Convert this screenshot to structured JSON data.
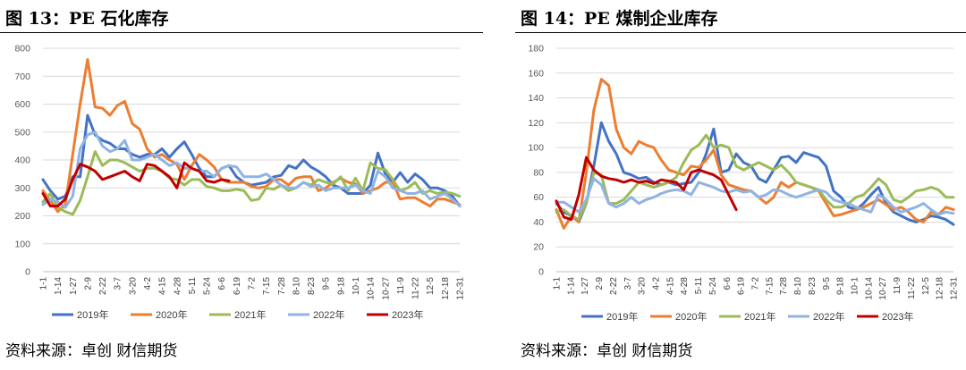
{
  "chart_data": [
    {
      "type": "line",
      "title": "图 13：PE 石化库存",
      "source": "资料来源：卓创  财信期货",
      "ylim": [
        0,
        800
      ],
      "yticks": [
        0,
        100,
        200,
        300,
        400,
        500,
        600,
        700,
        800
      ],
      "xticks": [
        "1-1",
        "1-14",
        "1-27",
        "2-9",
        "2-22",
        "3-7",
        "3-20",
        "4-2",
        "4-15",
        "4-28",
        "5-11",
        "5-24",
        "6-6",
        "6-19",
        "7-2",
        "7-15",
        "7-28",
        "8-10",
        "8-23",
        "9-5",
        "9-18",
        "10-1",
        "10-14",
        "10-27",
        "11-9",
        "11-22",
        "12-5",
        "12-18",
        "12-31"
      ],
      "grid": true,
      "legend": "bottom",
      "series": [
        {
          "name": "2019年",
          "color": "#4472c4",
          "values": [
            330,
            290,
            260,
            270,
            340,
            340,
            560,
            490,
            470,
            460,
            440,
            440,
            420,
            410,
            420,
            420,
            440,
            410,
            440,
            465,
            420,
            370,
            340,
            340,
            370,
            380,
            340,
            320,
            310,
            315,
            320,
            340,
            345,
            380,
            370,
            400,
            375,
            360,
            340,
            310,
            300,
            280,
            280,
            280,
            310,
            425,
            350,
            320,
            355,
            320,
            350,
            330,
            300,
            300,
            290,
            270,
            235
          ]
        },
        {
          "name": "2020年",
          "color": "#ed7d31",
          "values": [
            290,
            255,
            215,
            240,
            420,
            600,
            760,
            590,
            585,
            560,
            595,
            610,
            530,
            510,
            440,
            410,
            420,
            400,
            385,
            330,
            380,
            420,
            400,
            375,
            330,
            320,
            320,
            320,
            305,
            300,
            305,
            330,
            330,
            310,
            335,
            340,
            340,
            290,
            300,
            320,
            335,
            320,
            315,
            280,
            290,
            300,
            320,
            320,
            260,
            265,
            265,
            250,
            235,
            260,
            260,
            250,
            240
          ]
        },
        {
          "name": "2021年",
          "color": "#9bbb59",
          "values": [
            250,
            280,
            230,
            215,
            205,
            255,
            340,
            430,
            380,
            400,
            400,
            390,
            375,
            360,
            370,
            370,
            360,
            335,
            330,
            310,
            330,
            330,
            305,
            300,
            290,
            290,
            295,
            290,
            255,
            260,
            300,
            295,
            310,
            290,
            300,
            320,
            310,
            330,
            320,
            315,
            340,
            290,
            335,
            290,
            390,
            370,
            365,
            330,
            290,
            300,
            320,
            280,
            290,
            280,
            285,
            280,
            270
          ]
        },
        {
          "name": "2022年",
          "color": "#8fb4e3",
          "values": [
            240,
            260,
            250,
            230,
            270,
            440,
            490,
            500,
            450,
            430,
            440,
            470,
            400,
            400,
            410,
            420,
            400,
            380,
            390,
            370,
            370,
            360,
            360,
            340,
            370,
            380,
            375,
            340,
            340,
            340,
            350,
            330,
            310,
            300,
            300,
            320,
            305,
            310,
            290,
            300,
            300,
            300,
            310,
            290,
            280,
            360,
            340,
            300,
            290,
            280,
            280,
            290,
            260,
            270,
            280,
            260,
            235
          ]
        },
        {
          "name": "2023年",
          "color": "#c00000",
          "values": [
            280,
            235,
            235,
            260,
            330,
            385,
            375,
            360,
            330,
            340,
            350,
            360,
            340,
            325,
            385,
            380,
            360,
            340,
            300,
            390,
            370,
            360,
            325,
            320,
            330,
            325
          ]
        }
      ]
    },
    {
      "type": "line",
      "title": "图 14：PE 煤制企业库存",
      "source": "资料来源：卓创  财信期货",
      "ylim": [
        0,
        180
      ],
      "yticks": [
        0,
        20,
        40,
        60,
        80,
        100,
        120,
        140,
        160,
        180
      ],
      "xticks": [
        "1-1",
        "1-14",
        "1-27",
        "2-9",
        "2-22",
        "3-7",
        "3-20",
        "4-2",
        "4-15",
        "4-28",
        "5-11",
        "5-24",
        "6-6",
        "6-19",
        "7-2",
        "7-15",
        "7-28",
        "8-10",
        "8-23",
        "9-5",
        "9-18",
        "10-1",
        "10-14",
        "10-27",
        "11-9",
        "11-22",
        "12-5",
        "12-18",
        "12-31"
      ],
      "grid": true,
      "legend": "bottom",
      "series": [
        {
          "name": "2019年",
          "color": "#4472c4",
          "values": [
            55,
            48,
            45,
            40,
            55,
            85,
            120,
            105,
            95,
            80,
            78,
            75,
            76,
            72,
            70,
            72,
            70,
            71,
            72,
            80,
            95,
            115,
            80,
            82,
            95,
            88,
            85,
            75,
            72,
            82,
            92,
            93,
            88,
            96,
            94,
            92,
            85,
            65,
            60,
            52,
            50,
            55,
            62,
            68,
            55,
            48,
            45,
            42,
            40,
            42,
            45,
            44,
            42,
            38
          ]
        },
        {
          "name": "2020年",
          "color": "#ed7d31",
          "values": [
            50,
            35,
            45,
            40,
            80,
            130,
            155,
            150,
            115,
            100,
            95,
            105,
            102,
            100,
            90,
            82,
            80,
            78,
            85,
            84,
            90,
            98,
            78,
            70,
            68,
            66,
            65,
            60,
            55,
            60,
            72,
            68,
            72,
            70,
            68,
            65,
            55,
            45,
            46,
            48,
            50,
            52,
            55,
            58,
            54,
            50,
            52,
            48,
            42,
            40,
            48,
            46,
            52,
            50
          ]
        },
        {
          "name": "2021年",
          "color": "#9bbb59",
          "values": [
            48,
            50,
            45,
            42,
            55,
            80,
            78,
            55,
            55,
            58,
            65,
            72,
            70,
            68,
            70,
            72,
            76,
            88,
            98,
            102,
            110,
            100,
            102,
            100,
            85,
            82,
            85,
            88,
            85,
            82,
            86,
            80,
            72,
            70,
            68,
            66,
            58,
            52,
            52,
            55,
            60,
            62,
            68,
            75,
            70,
            58,
            56,
            60,
            65,
            66,
            68,
            66,
            60,
            60
          ]
        },
        {
          "name": "2022年",
          "color": "#8fb4e3",
          "values": [
            56,
            56,
            52,
            48,
            58,
            75,
            70,
            55,
            52,
            55,
            60,
            55,
            58,
            60,
            63,
            65,
            66,
            65,
            62,
            72,
            70,
            68,
            65,
            64,
            66,
            64,
            65,
            60,
            62,
            66,
            65,
            62,
            60,
            62,
            64,
            66,
            64,
            58,
            56,
            55,
            52,
            50,
            48,
            62,
            58,
            52,
            48,
            50,
            52,
            55,
            50,
            46,
            48,
            47
          ]
        },
        {
          "name": "2023年",
          "color": "#c00000",
          "values": [
            57,
            44,
            42,
            62,
            92,
            82,
            77,
            75,
            74,
            72,
            74,
            72,
            73,
            71,
            74,
            73,
            72,
            66,
            80,
            82,
            80,
            78,
            74,
            62,
            50
          ]
        }
      ]
    }
  ],
  "panels": [
    {
      "title": "图 13：PE 石化库存",
      "source": "资料来源：卓创  财信期货"
    },
    {
      "title": "图 14：PE 煤制企业库存",
      "source": "资料来源：卓创  财信期货"
    }
  ]
}
